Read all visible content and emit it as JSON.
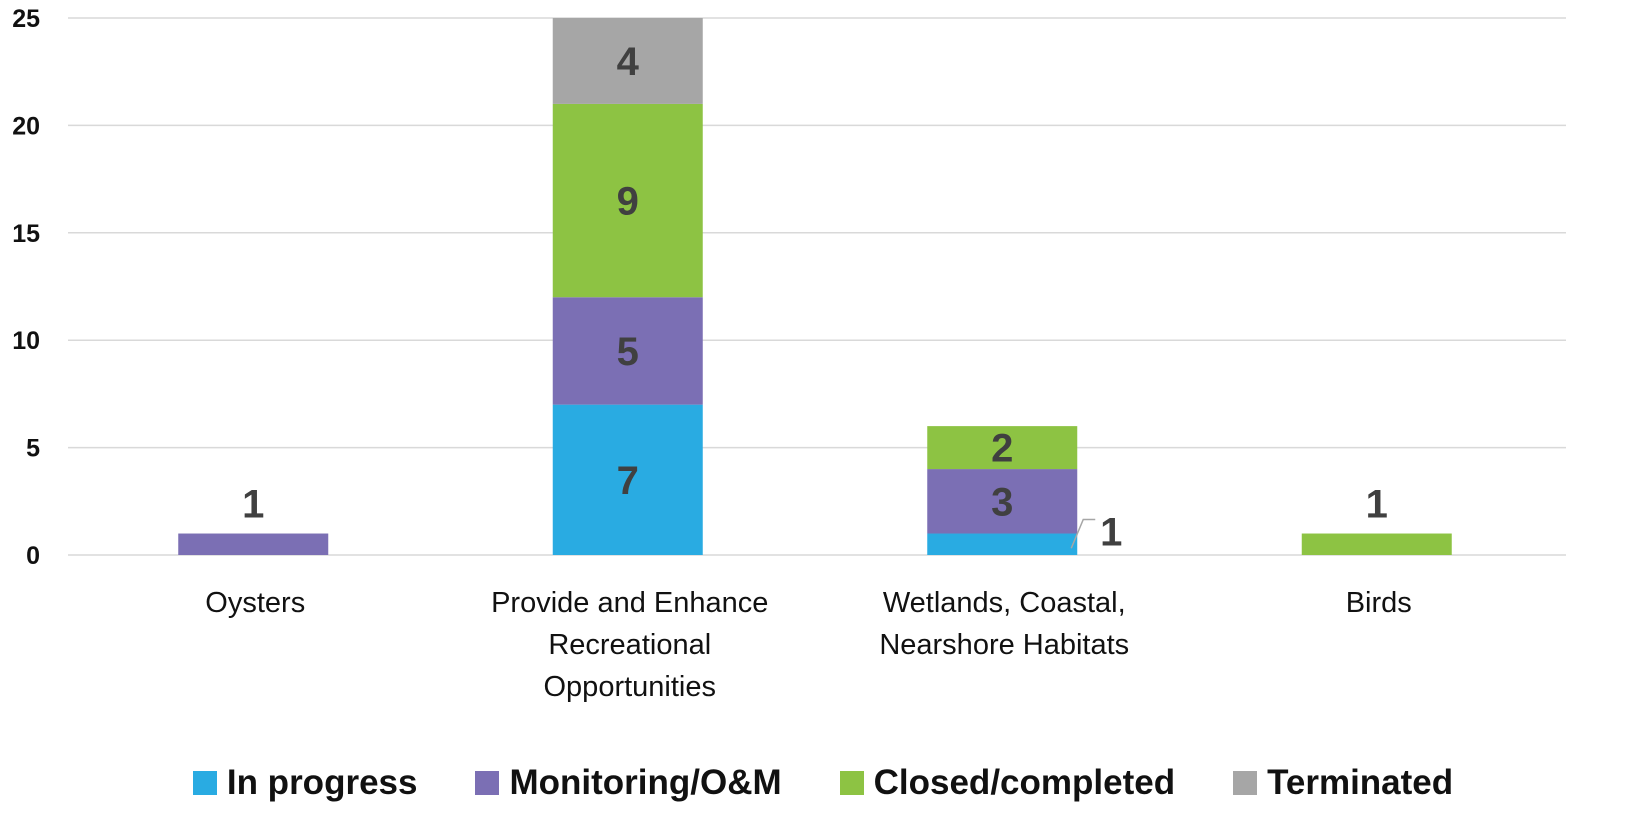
{
  "chart_data": {
    "type": "bar",
    "stacked": true,
    "categories": [
      "Oysters",
      "Provide and Enhance Recreational Opportunities",
      "Wetlands, Coastal, Nearshore Habitats",
      "Birds"
    ],
    "category_lines": [
      [
        "Oysters"
      ],
      [
        "Provide and Enhance",
        "Recreational",
        "Opportunities"
      ],
      [
        "Wetlands, Coastal,",
        "Nearshore Habitats"
      ],
      [
        "Birds"
      ]
    ],
    "series": [
      {
        "name": "In progress",
        "color": "#29ABE2",
        "values": [
          0,
          7,
          1,
          0
        ]
      },
      {
        "name": "Monitoring/O&M",
        "color": "#7B6FB4",
        "values": [
          1,
          5,
          3,
          0
        ]
      },
      {
        "name": "Closed/completed",
        "color": "#8DC343",
        "values": [
          0,
          9,
          2,
          1
        ]
      },
      {
        "name": "Terminated",
        "color": "#A6A6A6",
        "values": [
          0,
          4,
          0,
          0
        ]
      }
    ],
    "yticks": [
      "0",
      "5",
      "10",
      "15",
      "20",
      "25"
    ],
    "ylim": [
      0,
      25
    ],
    "grid": true,
    "legend_position": "bottom",
    "data_label_color": "#404040",
    "gridline_color": "#D9D9D9"
  }
}
